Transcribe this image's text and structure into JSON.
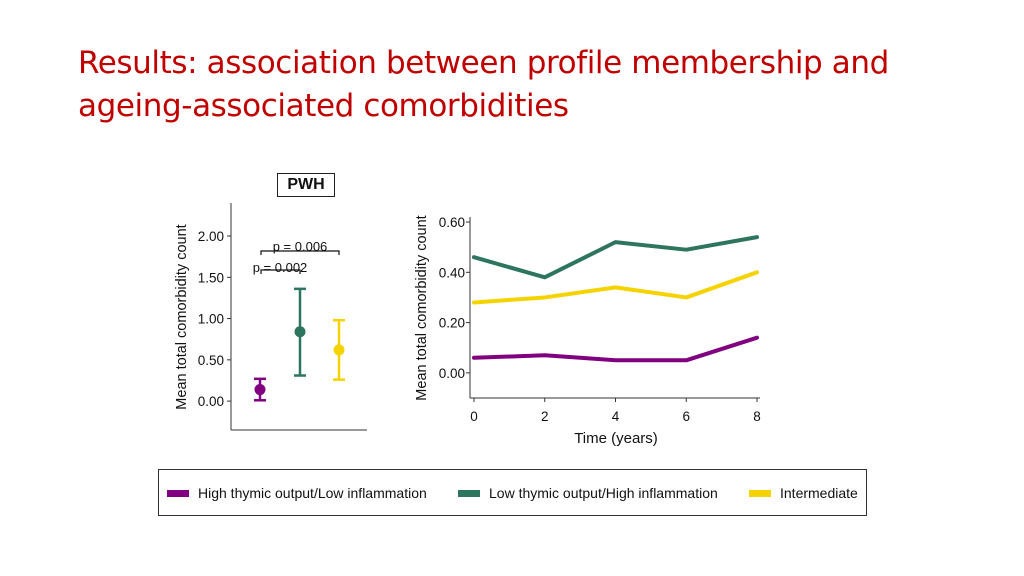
{
  "slide": {
    "title_line1": "Results: association between profile membership and",
    "title_line2": "ageing-associated comorbidities"
  },
  "colors": {
    "title": "#c00000",
    "high_thymic": "#800080",
    "low_thymic": "#2e7560",
    "intermediate": "#f5d300"
  },
  "chart_data": [
    {
      "type": "scatter",
      "panel_label": "PWH",
      "ylabel": "Mean total comorbidity count",
      "ylim": [
        -0.35,
        2.4
      ],
      "yticks": [
        "2.00",
        "1.50",
        "1.00",
        "0.50",
        "0.00"
      ],
      "series": [
        {
          "name": "High thymic output/Low inflammation",
          "mean": 0.14,
          "lower": 0.01,
          "upper": 0.27
        },
        {
          "name": "Low thymic output/High inflammation",
          "mean": 0.84,
          "lower": 0.31,
          "upper": 1.36
        },
        {
          "name": "Intermediate",
          "mean": 0.62,
          "lower": 0.26,
          "upper": 0.98
        }
      ],
      "annotations": [
        "p = 0.006",
        "p = 0.002"
      ]
    },
    {
      "type": "line",
      "xlabel": "Time (years)",
      "ylabel": "Mean total comorbidity count",
      "x": [
        0,
        2,
        4,
        6,
        8
      ],
      "xticks": [
        "0",
        "2",
        "4",
        "6",
        "8"
      ],
      "yticks": [
        "0.60",
        "0.40",
        "0.20",
        "0.00"
      ],
      "xlim": [
        0,
        8
      ],
      "ylim": [
        -0.1,
        0.62
      ],
      "series": [
        {
          "name": "High thymic output/Low inflammation",
          "values": [
            0.06,
            0.07,
            0.05,
            0.05,
            0.14
          ]
        },
        {
          "name": "Low thymic output/High inflammation",
          "values": [
            0.46,
            0.38,
            0.52,
            0.49,
            0.54
          ]
        },
        {
          "name": "Intermediate",
          "values": [
            0.28,
            0.3,
            0.34,
            0.3,
            0.4
          ]
        }
      ]
    }
  ],
  "legend": {
    "items": [
      {
        "label": "High thymic output/Low inflammation",
        "color": "#800080"
      },
      {
        "label": "Low thymic output/High inflammation",
        "color": "#2e7560"
      },
      {
        "label": "Intermediate",
        "color": "#f5d300"
      }
    ]
  }
}
